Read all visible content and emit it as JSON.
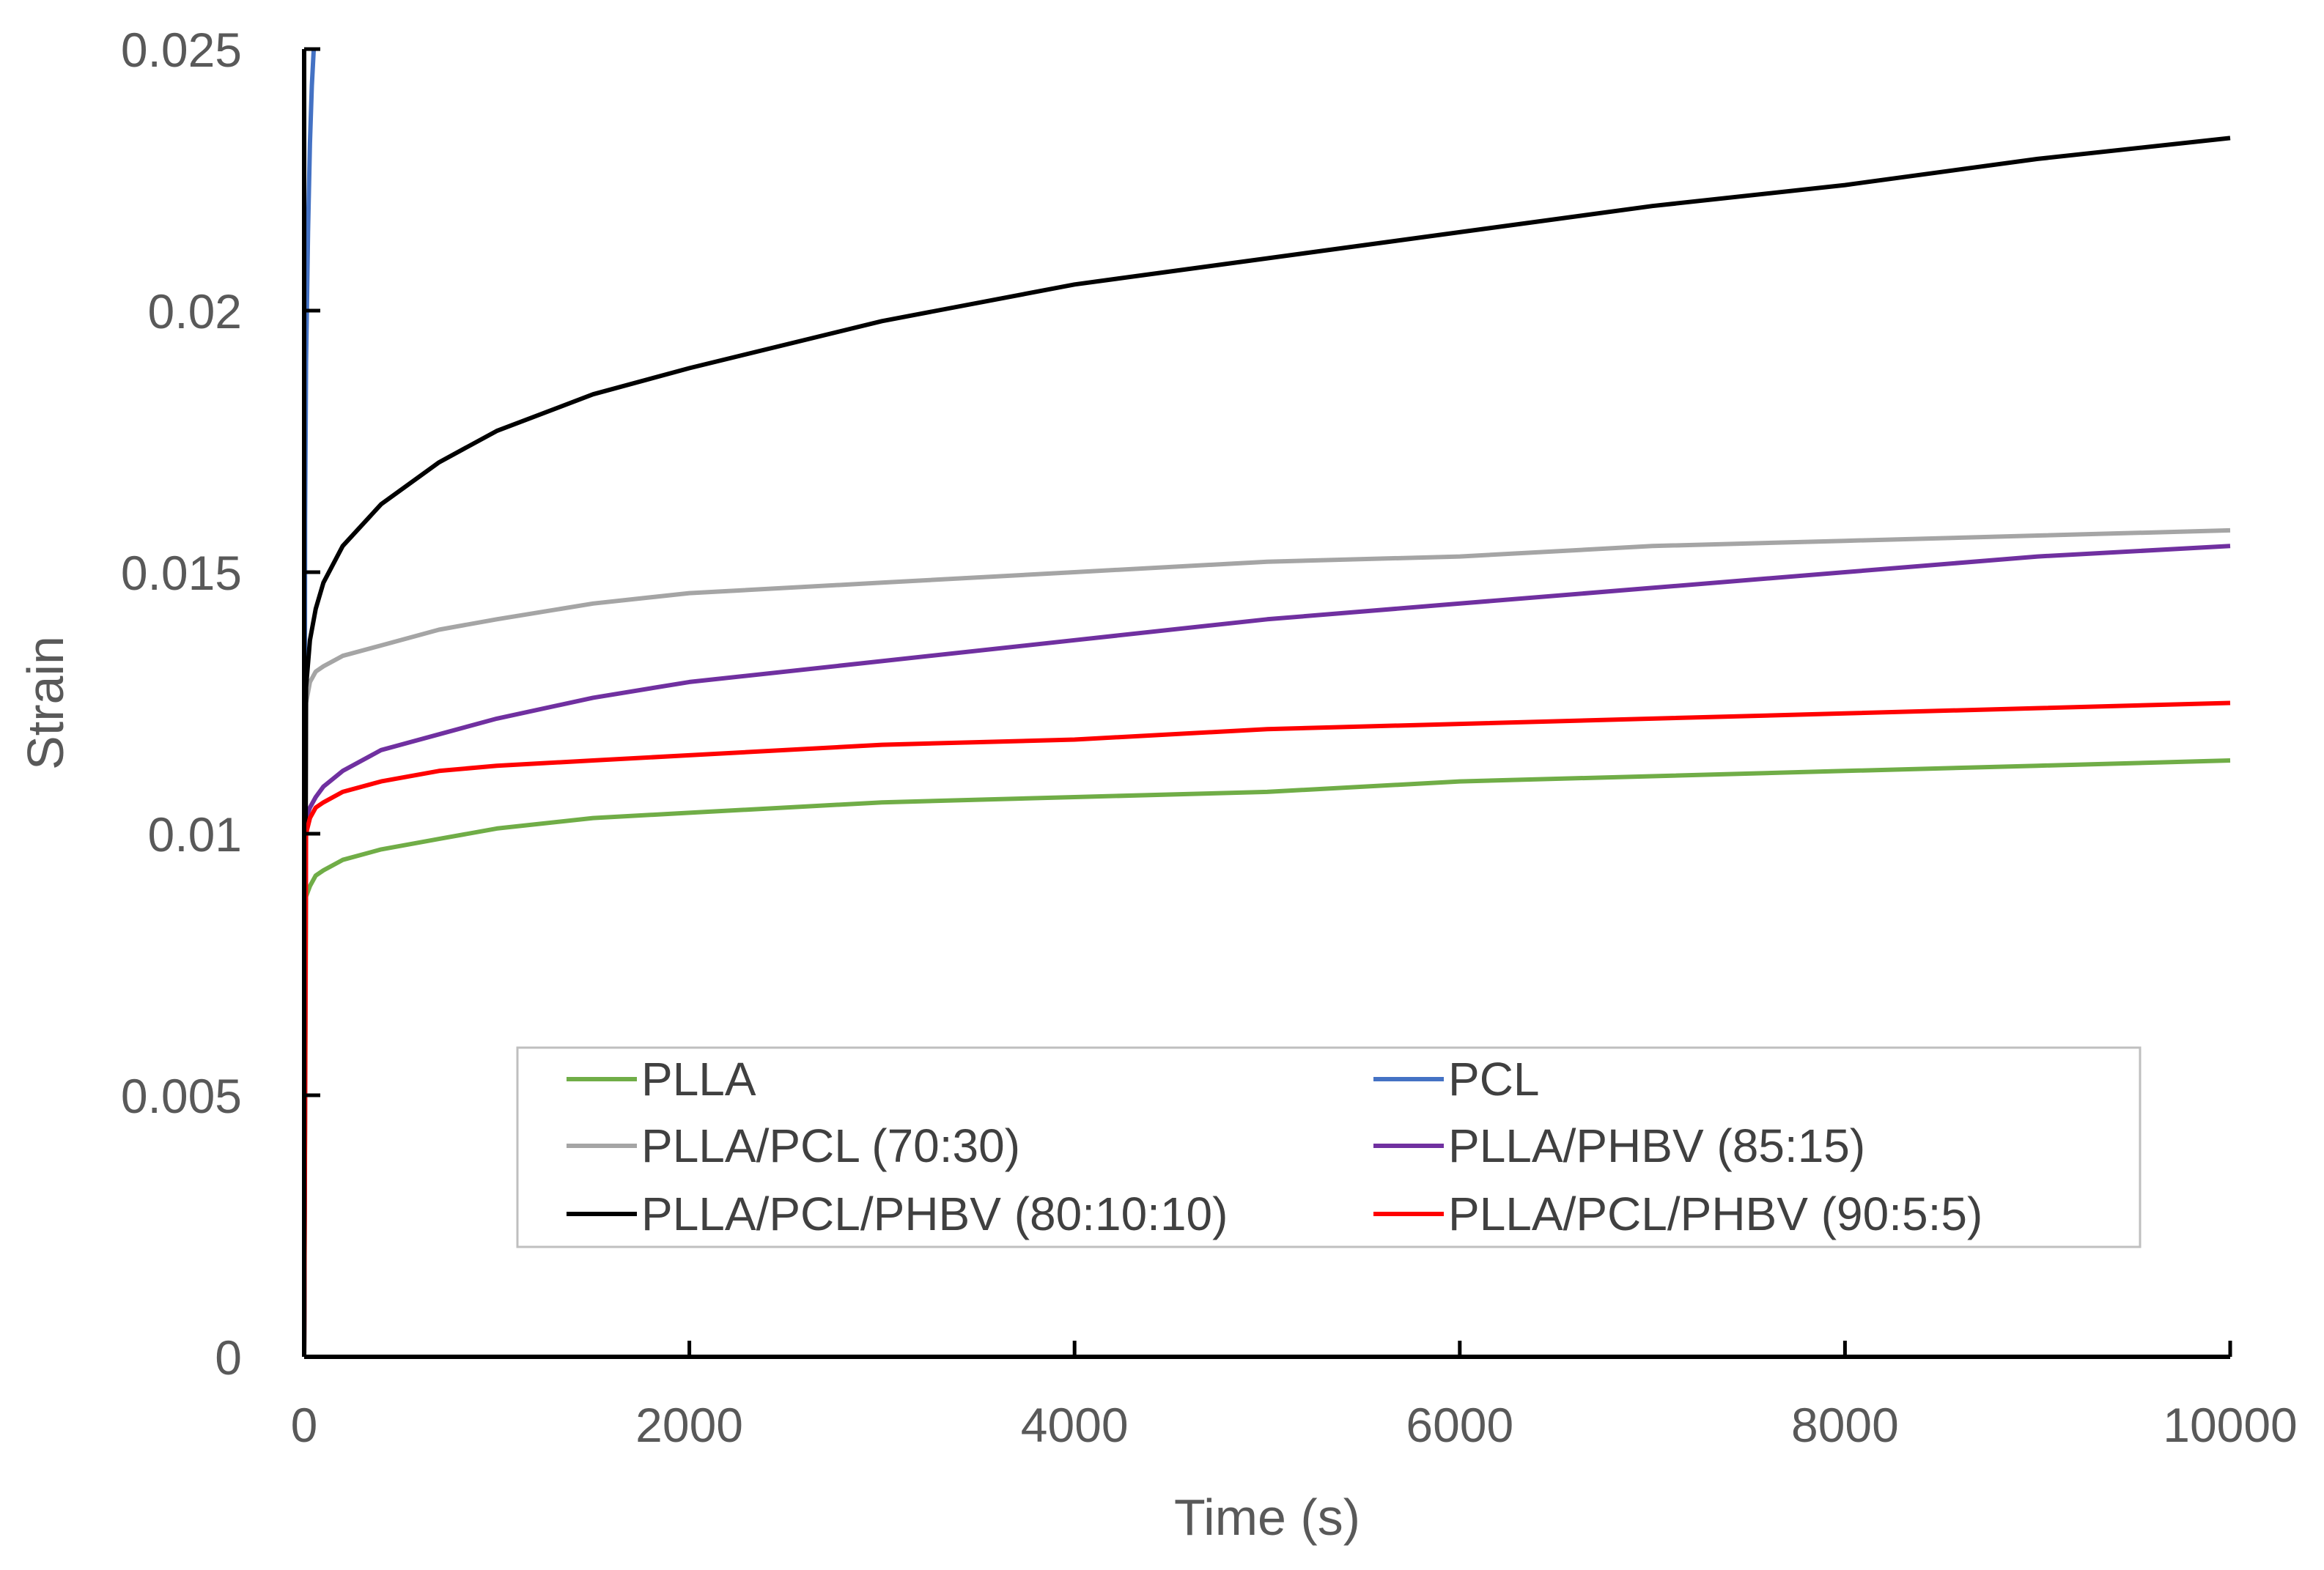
{
  "chart_data": {
    "type": "line",
    "title": "",
    "xlabel": "Time (s)",
    "ylabel": "Strain",
    "xlim": [
      0,
      10000
    ],
    "ylim": [
      0,
      0.025
    ],
    "x_ticks": [
      "0",
      "2000",
      "4000",
      "6000",
      "8000",
      "10000"
    ],
    "y_ticks": [
      "0",
      "0.005",
      "0.01",
      "0.015",
      "0.02",
      "0.025"
    ],
    "grid": false,
    "legend_position": "bottom-center",
    "series": [
      {
        "name": "PLLA",
        "color": "#70AD47",
        "x": [
          0,
          10,
          30,
          60,
          100,
          200,
          400,
          700,
          1000,
          1500,
          2000,
          3000,
          4000,
          5000,
          6000,
          7000,
          8000,
          9000,
          10000
        ],
        "y": [
          0,
          0.0088,
          0.009,
          0.0092,
          0.0093,
          0.0095,
          0.0097,
          0.0099,
          0.0101,
          0.0103,
          0.0104,
          0.0106,
          0.0107,
          0.0108,
          0.011,
          0.0111,
          0.0112,
          0.0113,
          0.0114
        ]
      },
      {
        "name": "PCL",
        "color": "#4472C4",
        "x": [
          0,
          5,
          10,
          20,
          30,
          40,
          50
        ],
        "y": [
          0,
          0.016,
          0.019,
          0.0215,
          0.0232,
          0.0243,
          0.025
        ]
      },
      {
        "name": "PLLA/PCL (70:30)",
        "color": "#A5A5A5",
        "x": [
          0,
          10,
          30,
          60,
          100,
          200,
          400,
          700,
          1000,
          1500,
          2000,
          3000,
          4000,
          5000,
          6000,
          7000,
          8000,
          9000,
          10000
        ],
        "y": [
          0,
          0.0125,
          0.0129,
          0.0131,
          0.0132,
          0.0134,
          0.0136,
          0.0139,
          0.0141,
          0.0144,
          0.0146,
          0.0148,
          0.015,
          0.0152,
          0.0153,
          0.0155,
          0.0156,
          0.0157,
          0.0158
        ]
      },
      {
        "name": "PLLA/PHBV (85:15)",
        "color": "#7030A0",
        "x": [
          0,
          10,
          30,
          60,
          100,
          200,
          400,
          700,
          1000,
          1500,
          2000,
          3000,
          4000,
          5000,
          6000,
          7000,
          8000,
          9000,
          10000
        ],
        "y": [
          0,
          0.0103,
          0.0105,
          0.0107,
          0.0109,
          0.0112,
          0.0116,
          0.0119,
          0.0122,
          0.0126,
          0.0129,
          0.0133,
          0.0137,
          0.0141,
          0.0144,
          0.0147,
          0.015,
          0.0153,
          0.0155
        ]
      },
      {
        "name": "PLLA/PCL/PHBV (80:10:10)",
        "color": "#000000",
        "x": [
          0,
          10,
          30,
          60,
          100,
          200,
          400,
          700,
          1000,
          1500,
          2000,
          3000,
          4000,
          5000,
          6000,
          7000,
          8000,
          9000,
          10000
        ],
        "y": [
          0,
          0.0128,
          0.0137,
          0.0143,
          0.0148,
          0.0155,
          0.0163,
          0.0171,
          0.0177,
          0.0184,
          0.0189,
          0.0198,
          0.0205,
          0.021,
          0.0215,
          0.022,
          0.0224,
          0.0229,
          0.0233
        ]
      },
      {
        "name": "PLLA/PCL/PHBV (90:5:5)",
        "color": "#FF0000",
        "x": [
          0,
          10,
          30,
          60,
          100,
          200,
          400,
          700,
          1000,
          1500,
          2000,
          3000,
          4000,
          5000,
          6000,
          7000,
          8000,
          9000,
          10000
        ],
        "y": [
          0,
          0.01,
          0.0103,
          0.0105,
          0.0106,
          0.0108,
          0.011,
          0.0112,
          0.0113,
          0.0114,
          0.0115,
          0.0117,
          0.0118,
          0.012,
          0.0121,
          0.0122,
          0.0123,
          0.0124,
          0.0125
        ]
      }
    ]
  }
}
